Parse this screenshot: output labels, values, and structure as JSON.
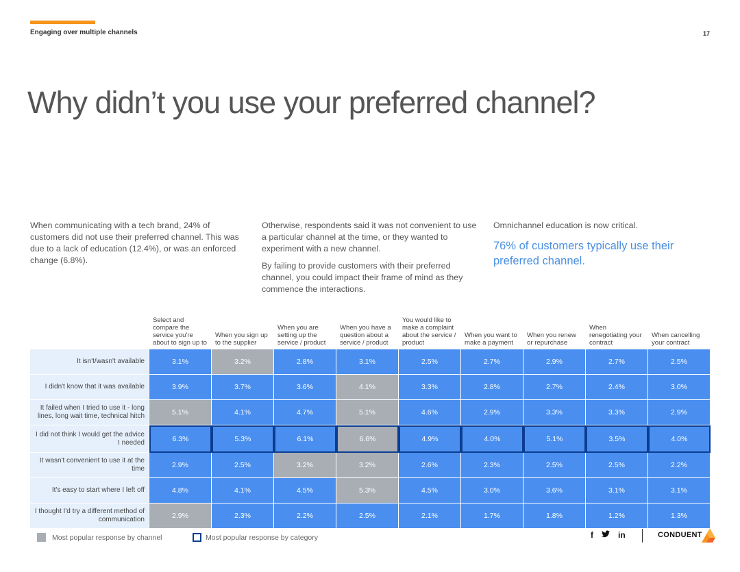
{
  "header": {
    "section": "Engaging over multiple channels",
    "page_number": "17"
  },
  "title": "Why didn’t you use your preferred channel?",
  "intro": {
    "col1": "When communicating with a tech brand, 24% of customers did not use their preferred channel. This was due to a lack of education (12.4%), or was an enforced change (6.8%).",
    "col2_p1": "Otherwise, respondents said it was not convenient to use a particular channel at the time, or they wanted to experiment with a new channel.",
    "col2_p2": "By failing to provide customers with their preferred channel, you  could impact their frame of mind as they commence the interactions.",
    "col3_p1": "Omnichannel education is now critical.",
    "col3_highlight": "76% of customers typically use their preferred channel."
  },
  "table": {
    "columns": [
      "Select and compare the service you're about to sign up to",
      "When you sign up to the supplier",
      "When you are setting up the service / product",
      "When you have a question about a service / product",
      "You would like to make a complaint about the service / product",
      "When you want to make a payment",
      "When you renew or repurchase",
      "When renegotiating your contract",
      "When cancelling your contract"
    ],
    "rows": [
      {
        "label": "It isn't/wasn't available",
        "values": [
          "3.1%",
          "3.2%",
          "2.8%",
          "3.1%",
          "2.5%",
          "2.7%",
          "2.9%",
          "2.7%",
          "2.5%"
        ]
      },
      {
        "label": "I didn't know that it was available",
        "values": [
          "3.9%",
          "3.7%",
          "3.6%",
          "4.1%",
          "3.3%",
          "2.8%",
          "2.7%",
          "2.4%",
          "3.0%"
        ]
      },
      {
        "label": "It failed when I tried to use it - long lines, long wait time, technical hitch",
        "values": [
          "5.1%",
          "4.1%",
          "4.7%",
          "5.1%",
          "4.6%",
          "2.9%",
          "3.3%",
          "3.3%",
          "2.9%"
        ]
      },
      {
        "label": "I did not think I would get the advice I needed",
        "values": [
          "6.3%",
          "5.3%",
          "6.1%",
          "6.6%",
          "4.9%",
          "4.0%",
          "5.1%",
          "3.5%",
          "4.0%"
        ]
      },
      {
        "label": "It wasn't convenient to use it at the time",
        "values": [
          "2.9%",
          "2.5%",
          "3.2%",
          "3.2%",
          "2.6%",
          "2.3%",
          "2.5%",
          "2.5%",
          "2.2%"
        ]
      },
      {
        "label": "It's easy to start where I left off",
        "values": [
          "4.8%",
          "4.1%",
          "4.5%",
          "5.3%",
          "4.5%",
          "3.0%",
          "3.6%",
          "3.1%",
          "3.1%"
        ]
      },
      {
        "label": "I thought I'd try a different method of communication",
        "values": [
          "2.9%",
          "2.3%",
          "2.2%",
          "2.5%",
          "2.1%",
          "1.7%",
          "1.8%",
          "1.2%",
          "1.3%"
        ]
      }
    ],
    "gray_cells": [
      [
        0,
        1
      ],
      [
        1,
        3
      ],
      [
        2,
        0
      ],
      [
        2,
        3
      ],
      [
        3,
        3
      ],
      [
        4,
        2
      ],
      [
        4,
        3
      ],
      [
        5,
        3
      ],
      [
        6,
        0
      ]
    ],
    "highlighted_row": 3
  },
  "legend": {
    "gray": "Most popular response by channel",
    "outline": "Most popular response by category"
  },
  "footer": {
    "social": [
      "f",
      "🐦",
      "in"
    ],
    "brand": "CONDUENT"
  },
  "colors": {
    "accent": "#f7941d",
    "cell_blue": "#4a8ff0",
    "cell_gray": "#a9aeb5",
    "label_bg": "#e6f0fc",
    "highlight_outline": "#0b3d91",
    "highlight_text": "#4a90e2"
  }
}
